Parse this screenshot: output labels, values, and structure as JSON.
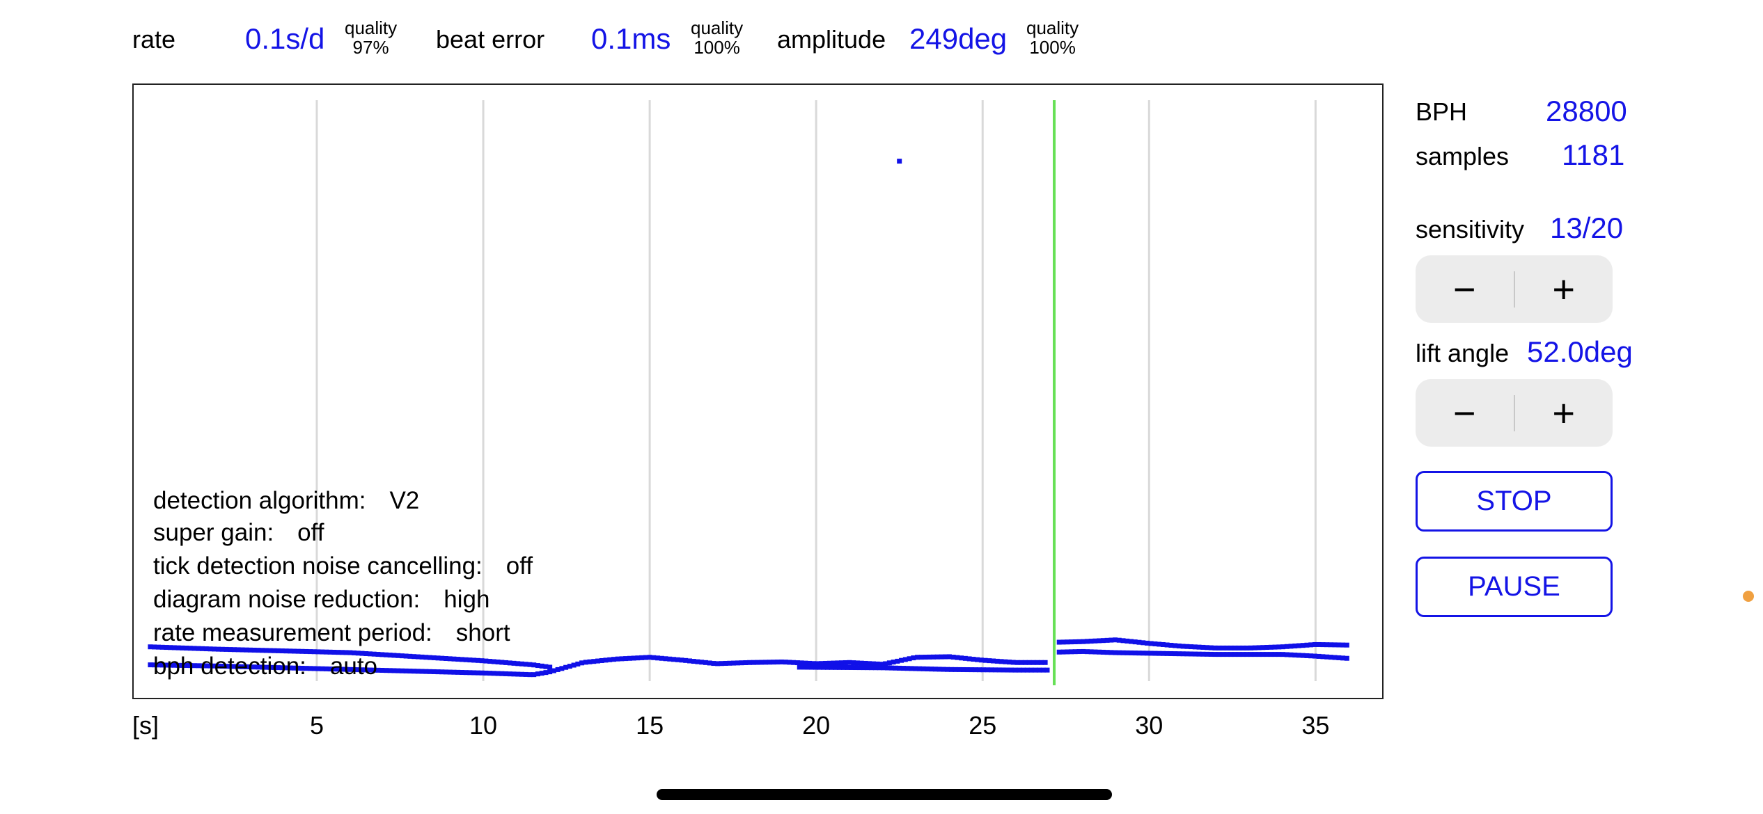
{
  "stats": {
    "rate_label": "rate",
    "rate_value": "0.1s/d",
    "rate_quality_label": "quality",
    "rate_quality_value": "97%",
    "beat_error_label": "beat error",
    "beat_error_value": "0.1ms",
    "beat_error_quality_label": "quality",
    "beat_error_quality_value": "100%",
    "amplitude_label": "amplitude",
    "amplitude_value": "249deg",
    "amplitude_quality_label": "quality",
    "amplitude_quality_value": "100%"
  },
  "settings_overlay": [
    {
      "label": "detection algorithm:",
      "value": "V2"
    },
    {
      "label": "super gain:",
      "value": "off"
    },
    {
      "label": "tick detection noise cancelling:",
      "value": "off"
    },
    {
      "label": "diagram noise reduction:",
      "value": "high"
    },
    {
      "label": "rate measurement period:",
      "value": "short"
    },
    {
      "label": "bph detection:",
      "value": "auto"
    }
  ],
  "side_panel": {
    "bph_label": "BPH",
    "bph_value": "28800",
    "samples_label": "samples",
    "samples_value": "1181",
    "sensitivity_label": "sensitivity",
    "sensitivity_value": "13/20",
    "lift_angle_label": "lift angle",
    "lift_angle_value": "52.0deg",
    "minus_symbol": "−",
    "plus_symbol": "+",
    "stop_label": "STOP",
    "pause_label": "PAUSE"
  },
  "colors": {
    "accent": "#1414e6",
    "trace": "#1010e8",
    "cursor": "#66e055",
    "grid": "#d9d9d9",
    "stepper_bg": "#ececec"
  },
  "chart_data": {
    "type": "scatter",
    "xlabel": "[s]",
    "x_ticks": [
      5,
      10,
      15,
      20,
      25,
      30,
      35
    ],
    "xlim": [
      -0.5,
      37
    ],
    "ylim": [
      0,
      100
    ],
    "grid": "vertical",
    "cursor_x": 27.15,
    "outlier_points": [
      {
        "x": 22.5,
        "y": 89.5
      }
    ],
    "series": [
      {
        "values": [
          {
            "x": 0,
            "y": 5.9
          },
          {
            "x": 2,
            "y": 5.5
          },
          {
            "x": 4,
            "y": 5.2
          },
          {
            "x": 6,
            "y": 4.9
          },
          {
            "x": 8,
            "y": 4.2
          },
          {
            "x": 10,
            "y": 3.5
          },
          {
            "x": 11.5,
            "y": 2.8
          },
          {
            "x": 12,
            "y": 2.4
          }
        ]
      },
      {
        "values": [
          {
            "x": 0,
            "y": 2.8
          },
          {
            "x": 2,
            "y": 2.6
          },
          {
            "x": 4,
            "y": 2.3
          },
          {
            "x": 6,
            "y": 2.0
          },
          {
            "x": 8,
            "y": 1.7
          },
          {
            "x": 10,
            "y": 1.4
          },
          {
            "x": 11.5,
            "y": 1.1
          },
          {
            "x": 12,
            "y": 1.6
          },
          {
            "x": 13,
            "y": 3.2
          },
          {
            "x": 14,
            "y": 3.8
          },
          {
            "x": 15,
            "y": 4.1
          },
          {
            "x": 16,
            "y": 3.6
          },
          {
            "x": 17,
            "y": 3.0
          },
          {
            "x": 18,
            "y": 3.2
          },
          {
            "x": 19,
            "y": 3.3
          },
          {
            "x": 20,
            "y": 3.0
          },
          {
            "x": 21,
            "y": 3.2
          },
          {
            "x": 22,
            "y": 2.9
          },
          {
            "x": 23,
            "y": 4.1
          },
          {
            "x": 24,
            "y": 4.2
          },
          {
            "x": 25,
            "y": 3.6
          },
          {
            "x": 26,
            "y": 3.2
          },
          {
            "x": 27,
            "y": 3.2
          }
        ]
      },
      {
        "values": [
          {
            "x": 19.5,
            "y": 2.4
          },
          {
            "x": 22,
            "y": 2.3
          },
          {
            "x": 24,
            "y": 2.0
          },
          {
            "x": 26,
            "y": 1.9
          },
          {
            "x": 27,
            "y": 1.9
          }
        ]
      },
      {
        "values": [
          {
            "x": 27.3,
            "y": 6.7
          },
          {
            "x": 28,
            "y": 6.8
          },
          {
            "x": 29,
            "y": 7.1
          },
          {
            "x": 30,
            "y": 6.5
          },
          {
            "x": 31,
            "y": 6.0
          },
          {
            "x": 32,
            "y": 5.7
          },
          {
            "x": 33,
            "y": 5.7
          },
          {
            "x": 34,
            "y": 5.9
          },
          {
            "x": 35,
            "y": 6.3
          },
          {
            "x": 36,
            "y": 6.2
          }
        ]
      },
      {
        "values": [
          {
            "x": 27.3,
            "y": 5.0
          },
          {
            "x": 28,
            "y": 5.1
          },
          {
            "x": 29,
            "y": 4.9
          },
          {
            "x": 30,
            "y": 4.8
          },
          {
            "x": 31,
            "y": 4.7
          },
          {
            "x": 32,
            "y": 4.6
          },
          {
            "x": 33,
            "y": 4.6
          },
          {
            "x": 34,
            "y": 4.6
          },
          {
            "x": 35,
            "y": 4.3
          },
          {
            "x": 36,
            "y": 3.9
          }
        ]
      }
    ]
  }
}
